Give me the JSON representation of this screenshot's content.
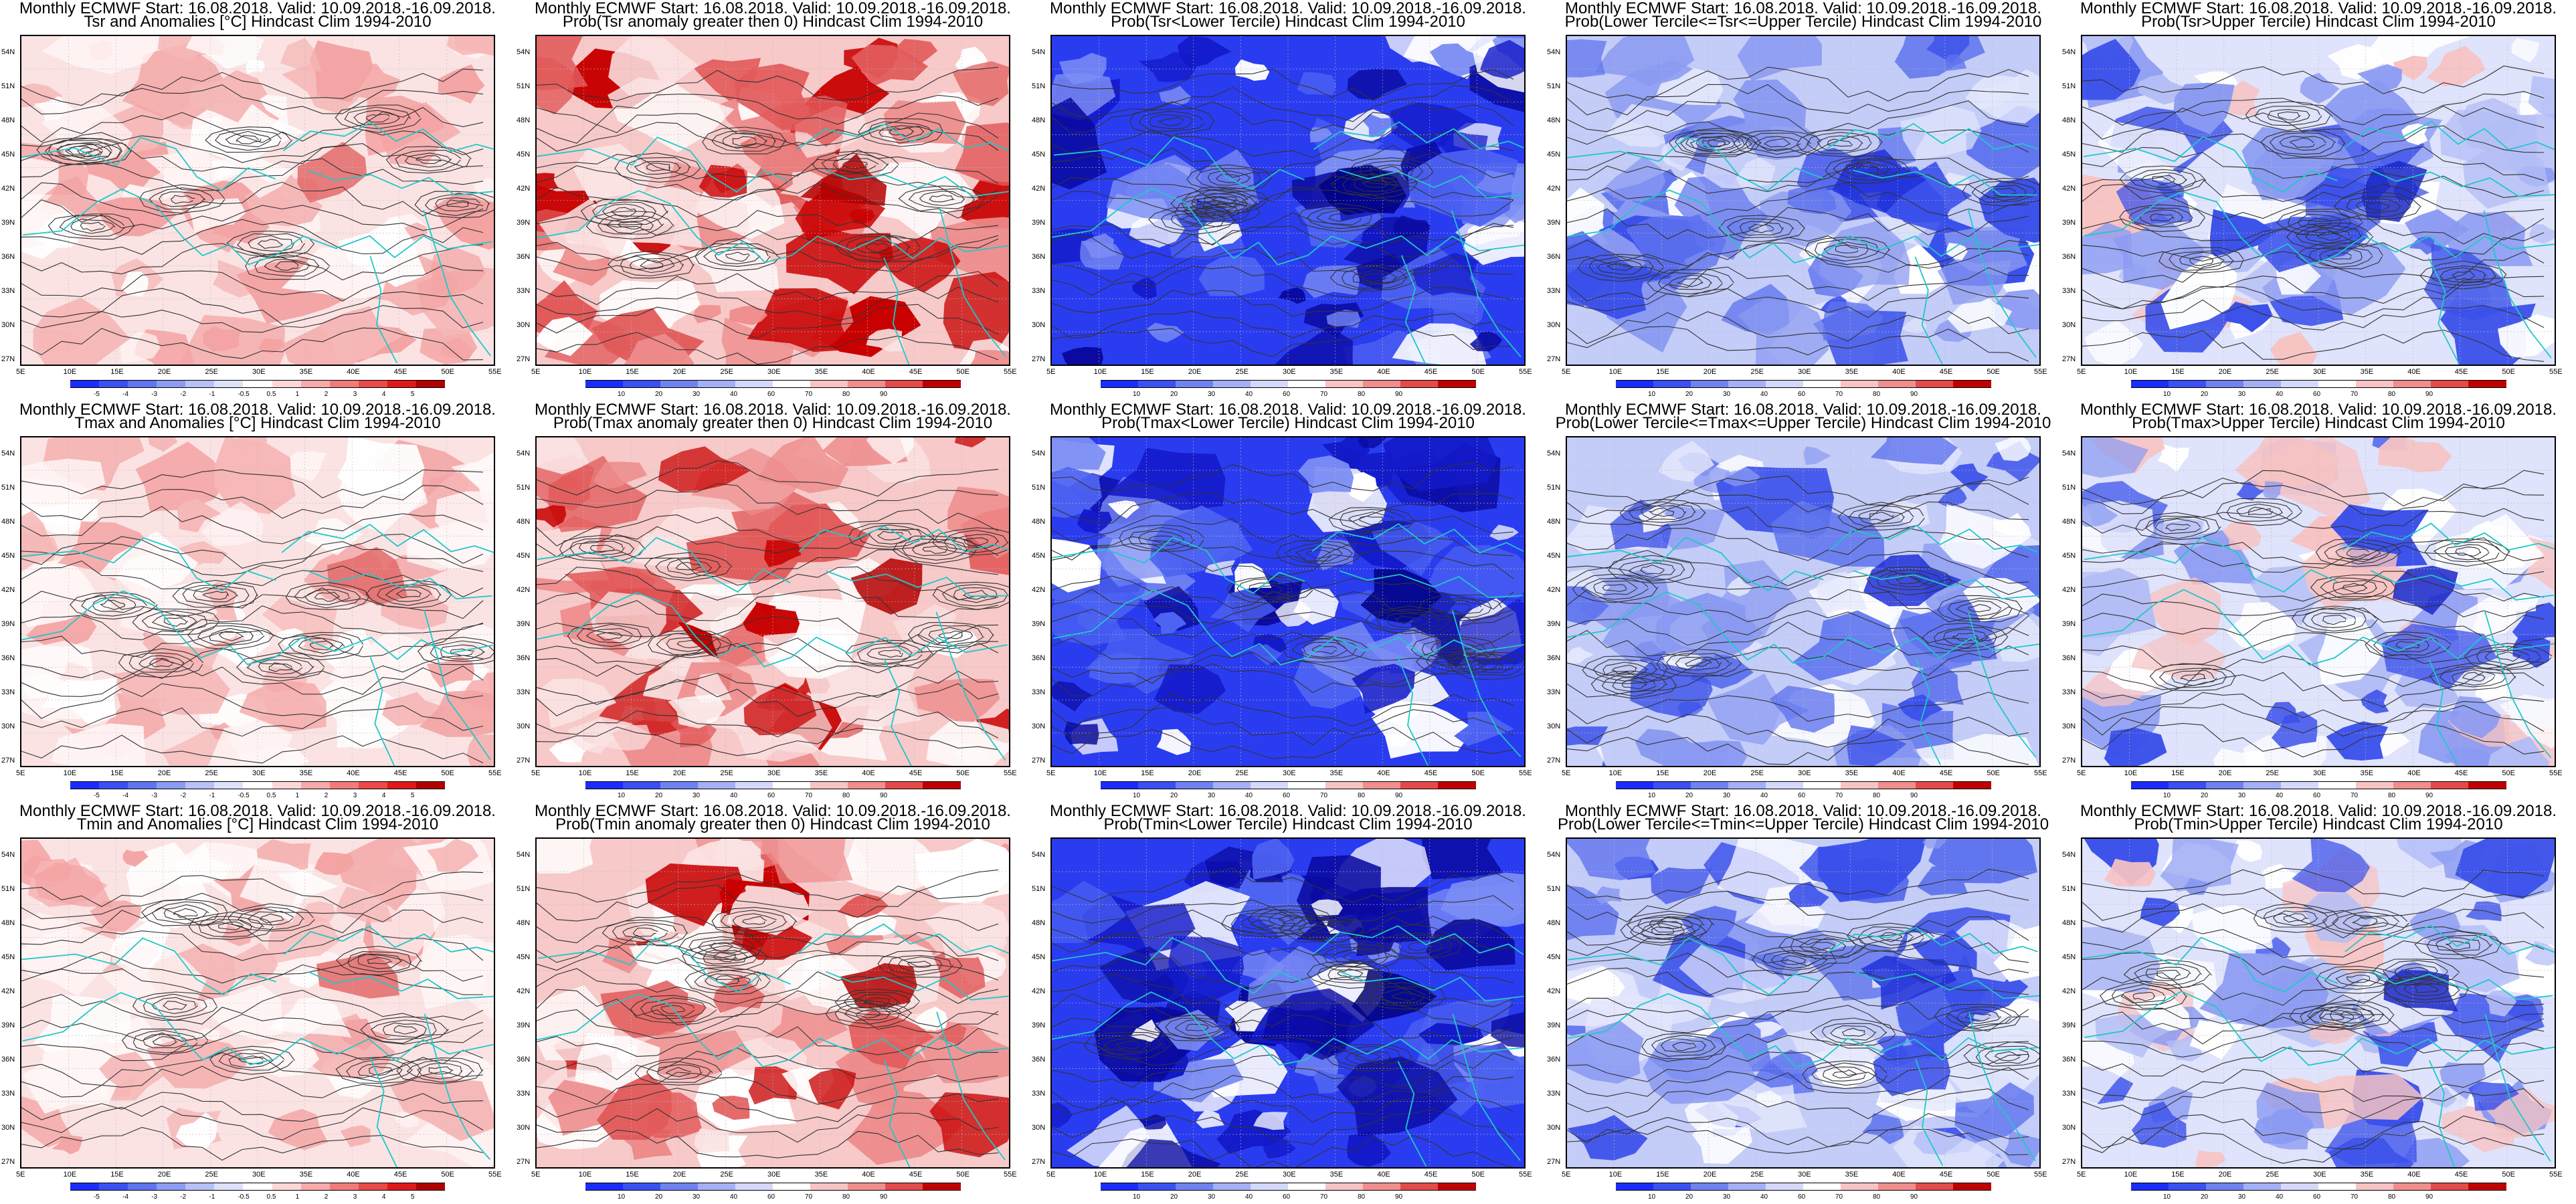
{
  "header_line": "Monthly ECMWF Start: 16.08.2018. Valid: 10.09.2018.-16.09.2018.",
  "lat_labels": [
    "54N",
    "51N",
    "48N",
    "45N",
    "42N",
    "39N",
    "36N",
    "33N",
    "30N",
    "27N"
  ],
  "lon_labels": [
    "5E",
    "10E",
    "15E",
    "20E",
    "25E",
    "30E",
    "35E",
    "40E",
    "45E",
    "50E",
    "55E"
  ],
  "colorbars": {
    "anomaly": {
      "labels": [
        "-5",
        "-4",
        "-3",
        "-2",
        "-1",
        "-0.5",
        "0.5",
        "1",
        "2",
        "3",
        "4",
        "5"
      ],
      "colors": [
        "#1b2cff",
        "#3a50f5",
        "#5f74f0",
        "#8c9cf2",
        "#b7c0f7",
        "#dde1fb",
        "#ffffff",
        "#fbd7d7",
        "#f6aaaa",
        "#f07b7b",
        "#ea4a4a",
        "#e01818",
        "#b00000"
      ]
    },
    "probability": {
      "labels": [
        "10",
        "20",
        "30",
        "40",
        "60",
        "70",
        "80",
        "90"
      ],
      "colors": [
        "#1b2cff",
        "#3a50f5",
        "#6f82f0",
        "#a4b0f5",
        "#d4d9fb",
        "#ffffff",
        "#f7c3c3",
        "#f08d8d",
        "#e44a4a",
        "#c00000"
      ]
    }
  },
  "panels": [
    {
      "title": "Tsr and Anomalies [°C] Hindcast Clim 1994-2010",
      "scale": "anomaly",
      "theme": "red-light"
    },
    {
      "title": "Prob(Tsr anomaly greater then 0) Hindcast Clim 1994-2010",
      "scale": "probability",
      "theme": "red"
    },
    {
      "title": "Prob(Tsr<Lower Tercile) Hindcast Clim 1994-2010",
      "scale": "probability",
      "theme": "blue-deep"
    },
    {
      "title": "Prob(Lower Tercile<=Tsr<=Upper Tercile) Hindcast Clim 1994-2010",
      "scale": "probability",
      "theme": "blue-mid"
    },
    {
      "title": "Prob(Tsr>Upper Tercile) Hindcast Clim 1994-2010",
      "scale": "probability",
      "theme": "blue-light"
    },
    {
      "title": "Tmax and Anomalies [°C] Hindcast Clim 1994-2010",
      "scale": "anomaly",
      "theme": "red-light"
    },
    {
      "title": "Prob(Tmax anomaly greater then 0) Hindcast Clim 1994-2010",
      "scale": "probability",
      "theme": "red"
    },
    {
      "title": "Prob(Tmax<Lower Tercile) Hindcast Clim 1994-2010",
      "scale": "probability",
      "theme": "blue-deep"
    },
    {
      "title": "Prob(Lower Tercile<=Tmax<=Upper Tercile) Hindcast Clim 1994-2010",
      "scale": "probability",
      "theme": "blue-mid"
    },
    {
      "title": "Prob(Tmax>Upper Tercile) Hindcast Clim 1994-2010",
      "scale": "probability",
      "theme": "blue-light"
    },
    {
      "title": "Tmin and Anomalies [°C] Hindcast Clim 1994-2010",
      "scale": "anomaly",
      "theme": "red-light"
    },
    {
      "title": "Prob(Tmin anomaly greater then 0) Hindcast Clim 1994-2010",
      "scale": "probability",
      "theme": "red"
    },
    {
      "title": "Prob(Tmin<Lower Tercile) Hindcast Clim 1994-2010",
      "scale": "probability",
      "theme": "blue-deep"
    },
    {
      "title": "Prob(Lower Tercile<=Tmin<=Upper Tercile) Hindcast Clim 1994-2010",
      "scale": "probability",
      "theme": "blue-mid"
    },
    {
      "title": "Prob(Tmin>Upper Tercile) Hindcast Clim 1994-2010",
      "scale": "probability",
      "theme": "blue-light"
    }
  ]
}
